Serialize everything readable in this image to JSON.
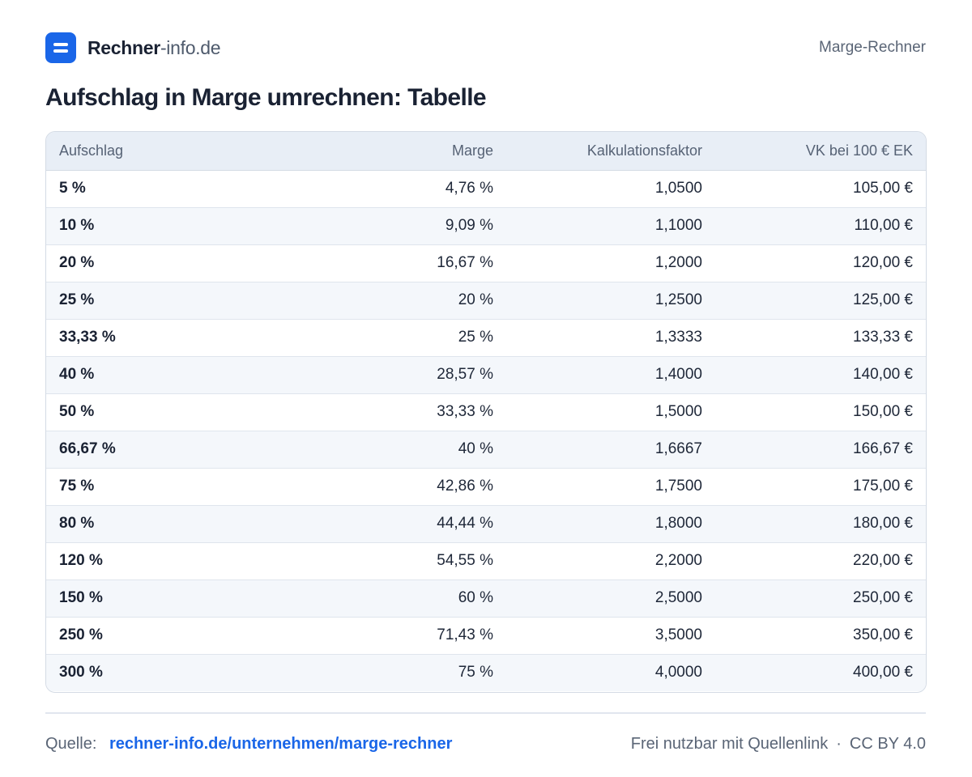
{
  "header": {
    "brand_strong": "Rechner",
    "brand_light": "-info.de",
    "right_label": "Marge-Rechner",
    "logo_icon": "menu-lines-icon",
    "accent": "#1a66e8"
  },
  "page_title": "Aufschlag in Marge umrechnen: Tabelle",
  "table": {
    "columns": [
      "Aufschlag",
      "Marge",
      "Kalkulationsfaktor",
      "VK bei 100 € EK"
    ],
    "rows": [
      [
        "5 %",
        "4,76 %",
        "1,0500",
        "105,00 €"
      ],
      [
        "10 %",
        "9,09 %",
        "1,1000",
        "110,00 €"
      ],
      [
        "20 %",
        "16,67 %",
        "1,2000",
        "120,00 €"
      ],
      [
        "25 %",
        "20 %",
        "1,2500",
        "125,00 €"
      ],
      [
        "33,33 %",
        "25 %",
        "1,3333",
        "133,33 €"
      ],
      [
        "40 %",
        "28,57 %",
        "1,4000",
        "140,00 €"
      ],
      [
        "50 %",
        "33,33 %",
        "1,5000",
        "150,00 €"
      ],
      [
        "66,67 %",
        "40 %",
        "1,6667",
        "166,67 €"
      ],
      [
        "75 %",
        "42,86 %",
        "1,7500",
        "175,00 €"
      ],
      [
        "80 %",
        "44,44 %",
        "1,8000",
        "180,00 €"
      ],
      [
        "120 %",
        "54,55 %",
        "2,2000",
        "220,00 €"
      ],
      [
        "150 %",
        "60 %",
        "2,5000",
        "250,00 €"
      ],
      [
        "250 %",
        "71,43 %",
        "3,5000",
        "350,00 €"
      ],
      [
        "300 %",
        "75 %",
        "4,0000",
        "400,00 €"
      ]
    ]
  },
  "footer": {
    "source_label": "Quelle:",
    "source_link": "rechner-info.de/unternehmen/marge-rechner",
    "license_text": "Frei nutzbar mit Quellenlink",
    "separator": "·",
    "license": "CC BY 4.0"
  }
}
